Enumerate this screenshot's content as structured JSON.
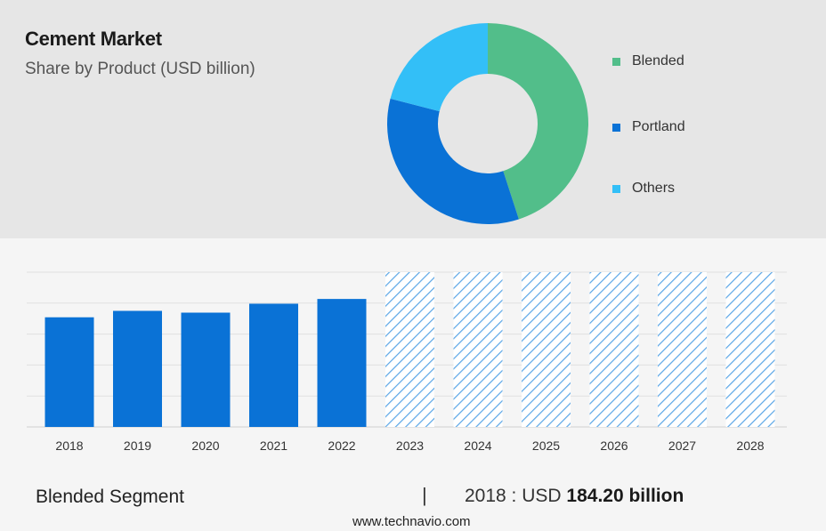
{
  "header": {
    "title": "Cement Market",
    "subtitle": "Share by Product (USD billion)"
  },
  "legend": {
    "items": [
      {
        "label": "Blended",
        "color": "#52be8a"
      },
      {
        "label": "Portland",
        "color": "#0a72d6"
      },
      {
        "label": "Others",
        "color": "#33bff7"
      }
    ]
  },
  "chart_data": [
    {
      "type": "pie",
      "categories": [
        "Blended",
        "Portland",
        "Others"
      ],
      "values": [
        45,
        34,
        21
      ],
      "colors": [
        "#52be8a",
        "#0a72d6",
        "#33bff7"
      ],
      "donut": true,
      "legend_position": "right"
    },
    {
      "type": "bar",
      "categories": [
        "2018",
        "2019",
        "2020",
        "2021",
        "2022",
        "2023",
        "2024",
        "2025",
        "2026",
        "2027",
        "2028"
      ],
      "values": [
        184.2,
        195,
        192,
        207,
        215,
        null,
        null,
        null,
        null,
        null,
        null
      ],
      "forecast_categories": [
        "2023",
        "2024",
        "2025",
        "2026",
        "2027",
        "2028"
      ],
      "ylim": [
        0,
        260
      ],
      "grid": true,
      "bar_color": "#0a72d6",
      "forecast_color": "#5aa6e6"
    }
  ],
  "summary": {
    "segment": "Blended Segment",
    "divider": "|",
    "year_prefix": "2018 : USD",
    "value": "184.20 billion"
  },
  "footer": {
    "source": "www.technavio.com"
  }
}
